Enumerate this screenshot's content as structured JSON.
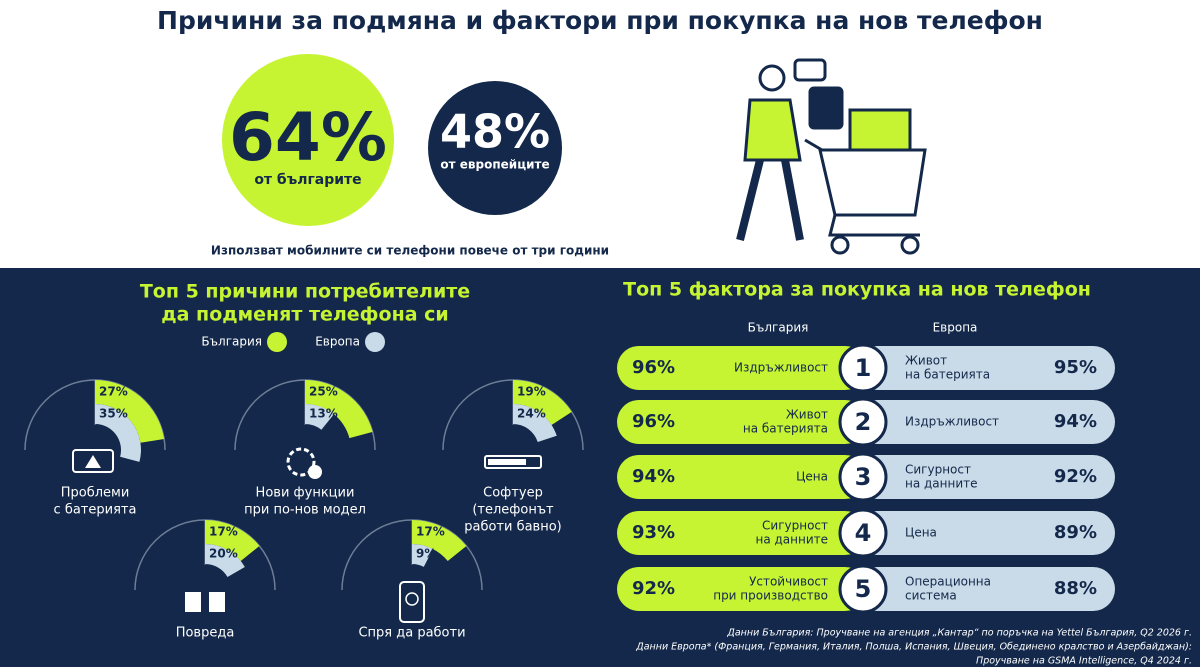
{
  "title": "Причини за подмяна и фактори при покупка на нов телефон",
  "hero": {
    "bulgaria": {
      "value": "64%",
      "text": "от българите"
    },
    "europe": {
      "value": "48%",
      "text": "от европейците"
    },
    "caption": "Използват мобилните си телефони повече от три години"
  },
  "reasons": {
    "title": [
      "Топ 5 причини потребителите",
      "да подменят телефона си"
    ],
    "legend": [
      {
        "name": "България",
        "color": "#c6f432"
      },
      {
        "name": "Европа",
        "color": "#c9dbe8"
      }
    ],
    "items": [
      {
        "label": [
          "Проблеми",
          "с батерията"
        ],
        "values": [
          27,
          35
        ],
        "value_labels": [
          "27%",
          "35%"
        ]
      },
      {
        "label": [
          "Нови функции",
          "при по-нов модел"
        ],
        "values": [
          25,
          13
        ],
        "value_labels": [
          "25%",
          "13%"
        ]
      },
      {
        "label": [
          "Софтуер",
          "(телефонът",
          "работи бавно)"
        ],
        "values": [
          19,
          24
        ],
        "value_labels": [
          "19%",
          "24%"
        ]
      },
      {
        "label": [
          "Повреда"
        ],
        "values": [
          17,
          20
        ],
        "value_labels": [
          "17%",
          "20%"
        ]
      },
      {
        "label": [
          "Спря да работи"
        ],
        "values": [
          17,
          9
        ],
        "value_labels": [
          "17%",
          "9%"
        ]
      }
    ]
  },
  "factors": {
    "title": "Топ 5 фактора за покупка на нов телефон",
    "columns": [
      "България",
      "Европа"
    ],
    "rows": [
      {
        "rank": "1",
        "bulgaria": {
          "value": "96%",
          "label": [
            "Издръжливост"
          ]
        },
        "europe": {
          "value": "95%",
          "label": [
            "Живот",
            "на батерията"
          ]
        }
      },
      {
        "rank": "2",
        "bulgaria": {
          "value": "96%",
          "label": [
            "Живот",
            "на батерията"
          ]
        },
        "europe": {
          "value": "94%",
          "label": [
            "Издръжливост"
          ]
        }
      },
      {
        "rank": "3",
        "bulgaria": {
          "value": "94%",
          "label": [
            "Цена"
          ]
        },
        "europe": {
          "value": "92%",
          "label": [
            "Сигурност",
            "на данните"
          ]
        }
      },
      {
        "rank": "4",
        "bulgaria": {
          "value": "93%",
          "label": [
            "Сигурност",
            "на данните"
          ]
        },
        "europe": {
          "value": "89%",
          "label": [
            "Цена"
          ]
        }
      },
      {
        "rank": "5",
        "bulgaria": {
          "value": "92%",
          "label": [
            "Устойчивост",
            "при производство"
          ]
        },
        "europe": {
          "value": "88%",
          "label": [
            "Операционна",
            "система"
          ]
        }
      }
    ]
  },
  "footnotes": [
    "Данни България: Проучване на агенция „Кантар“ по поръчка на Yettel България, Q2 2026 г.",
    "Данни Европа* (Франция, Германия, Италия, Полша, Испания, Швеция, Обединено кралство и Азербайджан):",
    "Проучване на GSMA Intelligence, Q4 2024 г."
  ]
}
